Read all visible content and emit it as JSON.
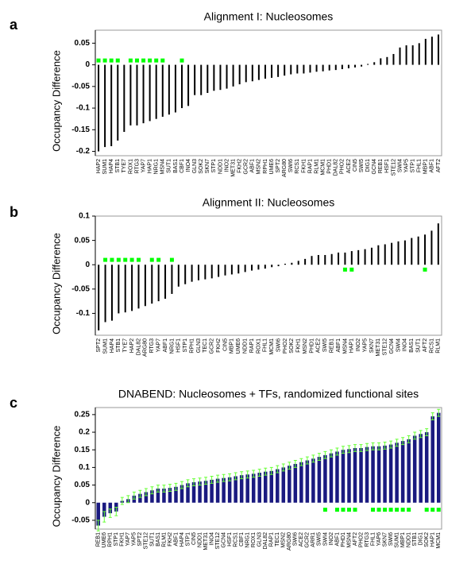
{
  "chart_data": [
    {
      "type": "stem",
      "panel": "a",
      "title": "Alignment I: Nucleosomes",
      "ylabel": "Occupancy Difference",
      "color": "#000000",
      "marker_color": "#00ff00",
      "categories": [
        "HAP2",
        "SUM1",
        "HAP4",
        "STB1",
        "TYE7",
        "ROX1",
        "RTG3",
        "YAP7",
        "HAP1",
        "NRG1",
        "MSN4",
        "SUT1",
        "BAS1",
        "CBF1",
        "INO4",
        "GLN3",
        "SOK2",
        "SKN7",
        "STP1",
        "NDD1",
        "INO2",
        "MET31",
        "FKH2",
        "GCR2",
        "ABF1",
        "MSN2",
        "RPH1",
        "UME6",
        "SPT2",
        "ARG80",
        "SWI6",
        "RCS1",
        "FKH1",
        "RAP1",
        "RLM1",
        "MCM1",
        "PHD1",
        "DAL82",
        "PHO2",
        "ACE2",
        "CIN5",
        "SWI5",
        "DIG1",
        "GCN4",
        "REB1",
        "HSF1",
        "STE12",
        "SWI4",
        "YAP5",
        "STP1",
        "FHL1",
        "MBP1",
        "ABF1",
        "AFT2"
      ],
      "values": [
        -0.2,
        -0.19,
        -0.188,
        -0.175,
        -0.155,
        -0.14,
        -0.14,
        -0.135,
        -0.13,
        -0.125,
        -0.12,
        -0.115,
        -0.11,
        -0.1,
        -0.095,
        -0.07,
        -0.07,
        -0.065,
        -0.06,
        -0.058,
        -0.055,
        -0.05,
        -0.045,
        -0.04,
        -0.038,
        -0.035,
        -0.032,
        -0.03,
        -0.028,
        -0.025,
        -0.022,
        -0.02,
        -0.02,
        -0.018,
        -0.016,
        -0.015,
        -0.013,
        -0.012,
        -0.01,
        -0.008,
        -0.006,
        -0.004,
        0.002,
        0.006,
        0.015,
        0.018,
        0.025,
        0.04,
        0.045,
        0.045,
        0.05,
        0.06,
        0.065,
        0.07
      ],
      "markers": [
        0.01,
        0.01,
        0.01,
        0.01,
        null,
        0.01,
        0.01,
        0.01,
        0.01,
        0.01,
        0.01,
        null,
        null,
        0.01,
        null,
        null,
        null,
        null,
        null,
        null,
        null,
        null,
        null,
        null,
        null,
        null,
        null,
        null,
        null,
        null,
        null,
        null,
        null,
        null,
        null,
        null,
        null,
        null,
        null,
        null,
        null,
        null,
        null,
        null,
        null,
        null,
        null,
        null,
        null,
        null,
        null,
        null,
        null,
        null
      ],
      "ylim": [
        -0.21,
        0.08
      ],
      "yticks": [
        -0.2,
        -0.15,
        -0.1,
        -0.05,
        0,
        0.05
      ]
    },
    {
      "type": "stem",
      "panel": "b",
      "title": "Alignment II: Nucleosomes",
      "ylabel": "Occupancy Difference",
      "color": "#000000",
      "marker_color": "#00ff00",
      "categories": [
        "SPT2",
        "SUM1",
        "HAP4",
        "STB1",
        "TYE7",
        "HAP2",
        "DAL82",
        "ARG80",
        "RTG3",
        "YAP7",
        "ABF1",
        "NRG1",
        "HSF1",
        "STP1",
        "RPH1",
        "GLN3",
        "TEC1",
        "GCR2",
        "FKH2",
        "CIN5",
        "MBP1",
        "UME6",
        "NDD1",
        "RAP1",
        "ROX1",
        "FHL1",
        "MCM1",
        "SWI6",
        "PHO2",
        "SOK2",
        "FKH1",
        "MSN2",
        "PHD1",
        "ACE2",
        "SWI5",
        "REB1",
        "ABF1",
        "MSN4",
        "HAP1",
        "INO2",
        "YAP5",
        "SKN7",
        "MET31",
        "STE12",
        "GCN4",
        "SWI4",
        "INO4",
        "BAS1",
        "SUT1",
        "AFT2",
        "RCS1",
        "RLM1"
      ],
      "values": [
        -0.135,
        -0.118,
        -0.115,
        -0.1,
        -0.098,
        -0.095,
        -0.09,
        -0.085,
        -0.08,
        -0.075,
        -0.07,
        -0.06,
        -0.045,
        -0.04,
        -0.035,
        -0.032,
        -0.03,
        -0.028,
        -0.025,
        -0.022,
        -0.02,
        -0.018,
        -0.015,
        -0.012,
        -0.01,
        -0.008,
        -0.005,
        -0.003,
        0.002,
        0.004,
        0.008,
        0.012,
        0.018,
        0.02,
        0.02,
        0.022,
        0.025,
        0.025,
        0.028,
        0.03,
        0.032,
        0.035,
        0.04,
        0.042,
        0.045,
        0.048,
        0.05,
        0.055,
        0.058,
        0.062,
        0.07,
        0.085
      ],
      "markers": [
        null,
        0.01,
        0.01,
        0.01,
        0.01,
        0.01,
        0.01,
        null,
        0.01,
        0.01,
        null,
        0.01,
        null,
        null,
        null,
        null,
        null,
        null,
        null,
        null,
        null,
        null,
        null,
        null,
        null,
        null,
        null,
        null,
        null,
        null,
        null,
        null,
        null,
        null,
        null,
        null,
        null,
        -0.01,
        -0.01,
        null,
        null,
        null,
        null,
        null,
        null,
        null,
        null,
        null,
        null,
        -0.01,
        null,
        null
      ],
      "ylim": [
        -0.145,
        0.1
      ],
      "yticks": [
        -0.1,
        -0.05,
        0,
        0.05,
        0.1
      ]
    },
    {
      "type": "bar",
      "panel": "c",
      "title": "DNABEND: Nucleosomes + TFs, randomized functional sites",
      "ylabel": "Occupancy Difference",
      "color": "#1a1a80",
      "error_color": "#66ff33",
      "marker_color": "#00ff00",
      "categories": [
        "REB1",
        "UME6",
        "RPH1",
        "STP1",
        "FKH1",
        "YAP7",
        "YAP5",
        "SPT2",
        "STE12",
        "SUT1",
        "BAS1",
        "RLM1",
        "FKH2",
        "ABF1",
        "HAP4",
        "STP1",
        "CIN5",
        "NDD1",
        "MET31",
        "INO4",
        "STE12",
        "GCN4",
        "HSF1",
        "RCS1",
        "CBF1",
        "NRG1",
        "ROX1",
        "GLN3",
        "DAL82",
        "RAP1",
        "TEC1",
        "MSN2",
        "ARG80",
        "SWI6",
        "ACE2",
        "GCR2",
        "ARR1",
        "SWI5",
        "SWI4",
        "INO2",
        "ABF1",
        "PHD1",
        "MSN4",
        "AFT2",
        "PHO2",
        "RTG3",
        "FHL1",
        "YAP6",
        "SKN7",
        "SWI6",
        "SUM1",
        "MBP1",
        "NDD1",
        "STB1",
        "DIG1",
        "SOK2",
        "HAP1",
        "MCM1"
      ],
      "values": [
        -0.065,
        -0.04,
        -0.03,
        -0.025,
        0.005,
        0.01,
        0.02,
        0.025,
        0.03,
        0.035,
        0.04,
        0.04,
        0.042,
        0.045,
        0.05,
        0.055,
        0.058,
        0.06,
        0.062,
        0.065,
        0.068,
        0.07,
        0.072,
        0.075,
        0.078,
        0.08,
        0.082,
        0.085,
        0.088,
        0.09,
        0.095,
        0.1,
        0.105,
        0.11,
        0.115,
        0.12,
        0.125,
        0.13,
        0.135,
        0.14,
        0.145,
        0.15,
        0.152,
        0.155,
        0.155,
        0.158,
        0.16,
        0.16,
        0.162,
        0.165,
        0.17,
        0.175,
        0.18,
        0.19,
        0.195,
        0.2,
        0.245,
        0.255
      ],
      "errors": [
        0.015,
        0.015,
        0.012,
        0.012,
        0.01,
        0.01,
        0.01,
        0.01,
        0.01,
        0.01,
        0.01,
        0.01,
        0.01,
        0.01,
        0.01,
        0.01,
        0.01,
        0.01,
        0.01,
        0.01,
        0.01,
        0.01,
        0.01,
        0.01,
        0.01,
        0.01,
        0.01,
        0.01,
        0.01,
        0.01,
        0.01,
        0.01,
        0.01,
        0.01,
        0.01,
        0.01,
        0.01,
        0.01,
        0.01,
        0.01,
        0.01,
        0.01,
        0.01,
        0.01,
        0.01,
        0.01,
        0.01,
        0.01,
        0.01,
        0.01,
        0.01,
        0.01,
        0.01,
        0.01,
        0.01,
        0.01,
        0.01,
        0.01
      ],
      "markers": [
        null,
        null,
        null,
        null,
        null,
        null,
        null,
        null,
        null,
        null,
        null,
        null,
        null,
        null,
        null,
        null,
        null,
        null,
        null,
        null,
        null,
        null,
        null,
        null,
        null,
        null,
        null,
        null,
        null,
        null,
        null,
        null,
        null,
        null,
        null,
        null,
        null,
        null,
        -0.02,
        null,
        -0.02,
        -0.02,
        -0.02,
        -0.02,
        null,
        null,
        -0.02,
        -0.02,
        -0.02,
        -0.02,
        -0.02,
        -0.02,
        -0.02,
        null,
        null,
        -0.02,
        -0.02,
        -0.02
      ],
      "ylim": [
        -0.075,
        0.27
      ],
      "yticks": [
        -0.05,
        0,
        0.05,
        0.1,
        0.15,
        0.2,
        0.25
      ]
    }
  ]
}
